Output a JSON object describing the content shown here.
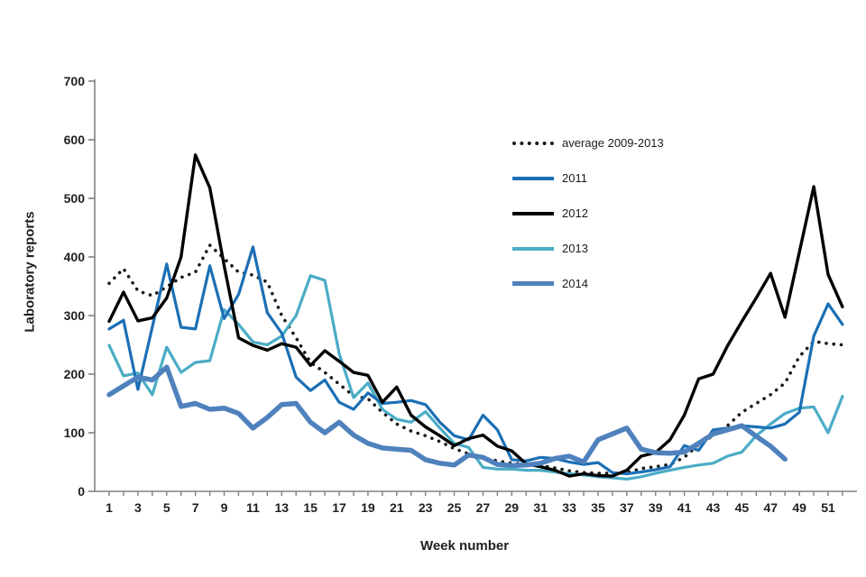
{
  "figure": {
    "ylabel": "Laboratory reports",
    "xlabel": "Week number",
    "background": "#ffffff",
    "axis_color": "#808080",
    "tick_label_color": "#1f1f1f"
  },
  "legend": [
    {
      "series": "average",
      "label": "average 2009-2013",
      "color": "#1a1a1a",
      "style": "dotted",
      "width": 4
    },
    {
      "series": "2011",
      "label": "2011",
      "color": "#1b6fb5",
      "style": "solid",
      "width": 4
    },
    {
      "series": "2012",
      "label": "2012",
      "color": "#000000",
      "style": "solid",
      "width": 4
    },
    {
      "series": "2013",
      "label": "2013",
      "color": "#4bacc6",
      "style": "solid",
      "width": 4
    },
    {
      "series": "2014",
      "label": "2014",
      "color": "#4f81bd",
      "style": "solid",
      "width": 5
    }
  ],
  "chart_data": {
    "type": "line",
    "title": "",
    "xlabel": "Week number",
    "ylabel": "Laboratory reports",
    "x_weeks": [
      1,
      2,
      3,
      4,
      5,
      6,
      7,
      8,
      9,
      10,
      11,
      12,
      13,
      14,
      15,
      16,
      17,
      18,
      19,
      20,
      21,
      22,
      23,
      24,
      25,
      26,
      27,
      28,
      29,
      30,
      31,
      32,
      33,
      34,
      35,
      36,
      37,
      38,
      39,
      40,
      41,
      42,
      43,
      44,
      45,
      46,
      47,
      48,
      49,
      50,
      51,
      52
    ],
    "x_tick_labels": [
      1,
      3,
      5,
      7,
      9,
      11,
      13,
      15,
      17,
      19,
      21,
      23,
      25,
      27,
      29,
      31,
      33,
      35,
      37,
      39,
      41,
      43,
      45,
      47,
      49,
      51
    ],
    "y_ticks": [
      0,
      100,
      200,
      300,
      400,
      500,
      600,
      700
    ],
    "ylim": [
      0,
      700
    ],
    "grid": false,
    "legend_position": "upper-right-inside",
    "series": [
      {
        "name": "average 2009-2013",
        "color": "#1a1a1a",
        "style": "dotted",
        "stroke_width": 3.6,
        "values": [
          355,
          380,
          342,
          334,
          349,
          365,
          374,
          420,
          397,
          374,
          369,
          357,
          300,
          262,
          220,
          203,
          183,
          163,
          158,
          135,
          115,
          103,
          95,
          85,
          73,
          64,
          57,
          52,
          48,
          46,
          44,
          40,
          35,
          32,
          31,
          31,
          32,
          39,
          42,
          46,
          58,
          80,
          95,
          112,
          135,
          150,
          165,
          185,
          230,
          256,
          252,
          250
        ]
      },
      {
        "name": "2013",
        "color": "#4bacc6",
        "style": "solid",
        "stroke_width": 3.2,
        "values": [
          249,
          197,
          202,
          165,
          246,
          203,
          220,
          223,
          310,
          285,
          255,
          250,
          265,
          300,
          368,
          360,
          235,
          160,
          185,
          140,
          123,
          118,
          136,
          108,
          82,
          75,
          41,
          38,
          38,
          36,
          36,
          33,
          30,
          28,
          25,
          23,
          21,
          25,
          31,
          36,
          41,
          45,
          48,
          60,
          67,
          95,
          115,
          133,
          142,
          144,
          100,
          162
        ]
      },
      {
        "name": "2011",
        "color": "#1b6fb5",
        "style": "solid",
        "stroke_width": 3.2,
        "values": [
          277,
          292,
          174,
          280,
          388,
          280,
          277,
          385,
          295,
          336,
          417,
          305,
          270,
          195,
          172,
          190,
          152,
          140,
          168,
          150,
          152,
          155,
          148,
          118,
          95,
          88,
          130,
          105,
          54,
          52,
          58,
          56,
          50,
          46,
          49,
          32,
          30,
          33,
          37,
          42,
          78,
          70,
          105,
          108,
          112,
          110,
          108,
          115,
          135,
          265,
          320,
          285
        ]
      },
      {
        "name": "2012",
        "color": "#000000",
        "style": "solid",
        "stroke_width": 3.4,
        "values": [
          290,
          340,
          291,
          296,
          330,
          400,
          574,
          518,
          385,
          262,
          249,
          241,
          252,
          246,
          215,
          240,
          222,
          203,
          198,
          152,
          178,
          130,
          110,
          95,
          78,
          90,
          96,
          77,
          69,
          47,
          42,
          36,
          26,
          30,
          27,
          26,
          36,
          60,
          66,
          88,
          130,
          192,
          200,
          248,
          290,
          330,
          372,
          297,
          408,
          520,
          370,
          315
        ]
      },
      {
        "name": "2014",
        "color": "#4f81bd",
        "style": "solid",
        "stroke_width": 5.5,
        "values": [
          165,
          180,
          195,
          190,
          212,
          145,
          150,
          140,
          142,
          133,
          108,
          126,
          148,
          150,
          118,
          100,
          118,
          96,
          82,
          74,
          72,
          70,
          54,
          48,
          45,
          62,
          58,
          46,
          44,
          45,
          48,
          56,
          60,
          50,
          88,
          98,
          108,
          72,
          66,
          65,
          67,
          82,
          98,
          105,
          112,
          94,
          77,
          55
        ]
      }
    ]
  }
}
